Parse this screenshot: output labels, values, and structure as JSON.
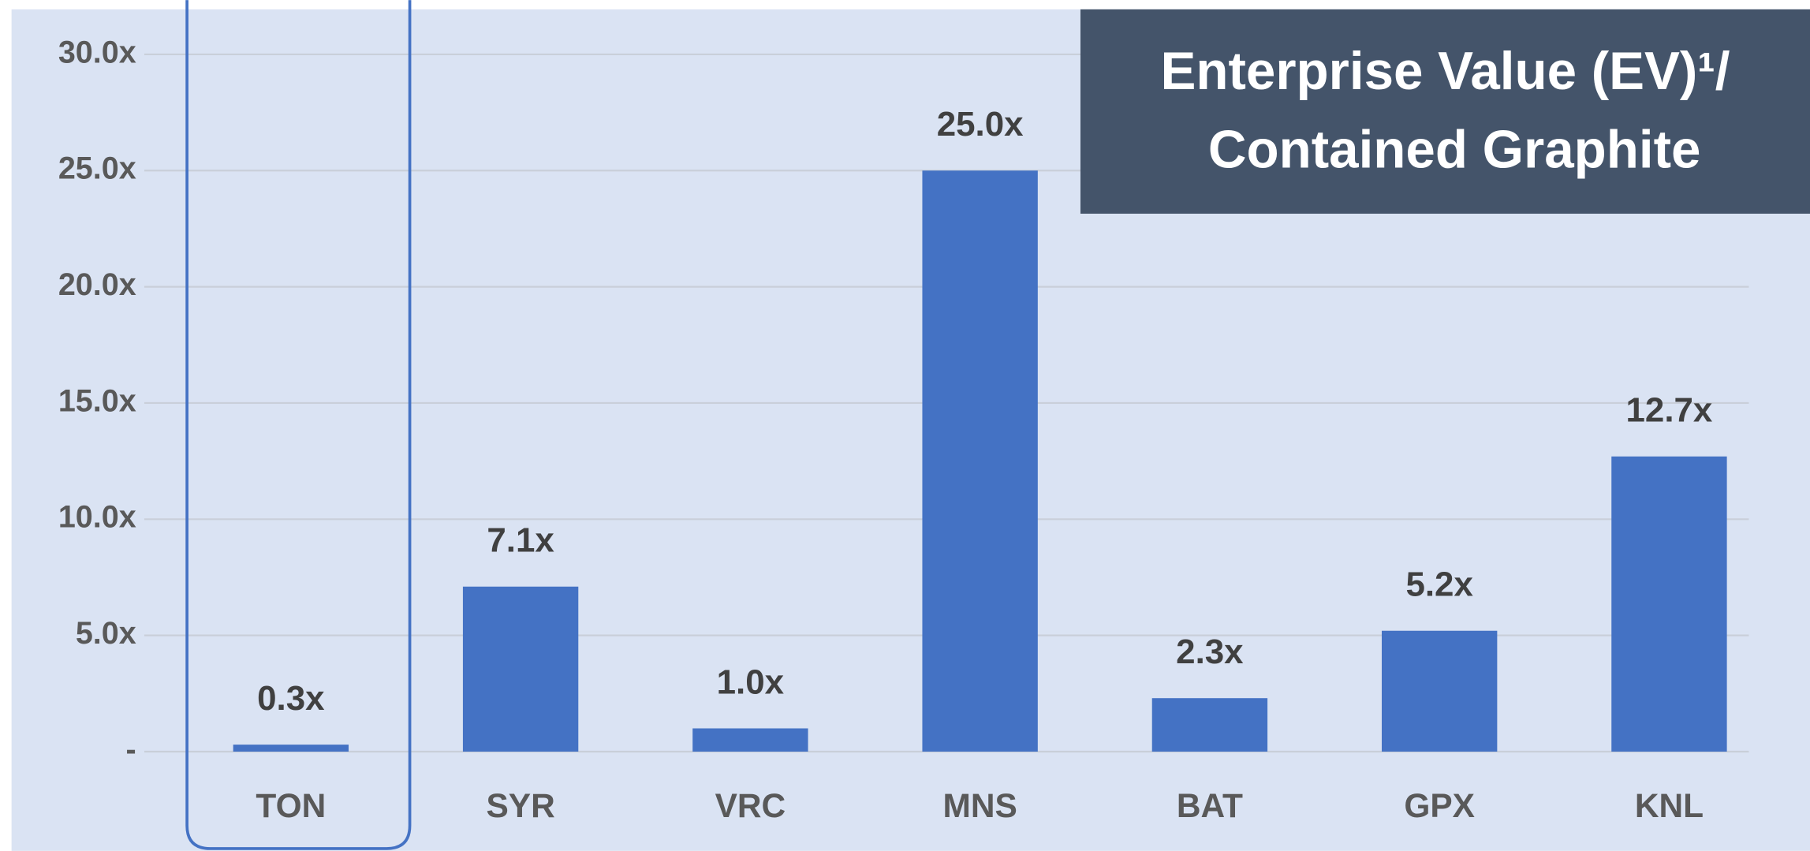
{
  "chart_data": {
    "type": "bar",
    "title": [
      "Enterprise Value (EV)¹/",
      "Contained Graphite"
    ],
    "categories": [
      "TON",
      "SYR",
      "VRC",
      "MNS",
      "BAT",
      "GPX",
      "KNL"
    ],
    "values": [
      0.3,
      7.1,
      1.0,
      25.0,
      2.3,
      5.2,
      12.7
    ],
    "value_labels": [
      "0.3x",
      "7.1x",
      "1.0x",
      "25.0x",
      "2.3x",
      "5.2x",
      "12.7x"
    ],
    "color": "#4472c4",
    "ylim": [
      0,
      30
    ],
    "yticks": [
      {
        "value": 0,
        "label": "-"
      },
      {
        "value": 5,
        "label": "5.0x"
      },
      {
        "value": 10,
        "label": "10.0x"
      },
      {
        "value": 15,
        "label": "15.0x"
      },
      {
        "value": 20,
        "label": "20.0x"
      },
      {
        "value": 25,
        "label": "25.0x"
      },
      {
        "value": 30,
        "label": "30.0x"
      }
    ],
    "grid": true
  }
}
